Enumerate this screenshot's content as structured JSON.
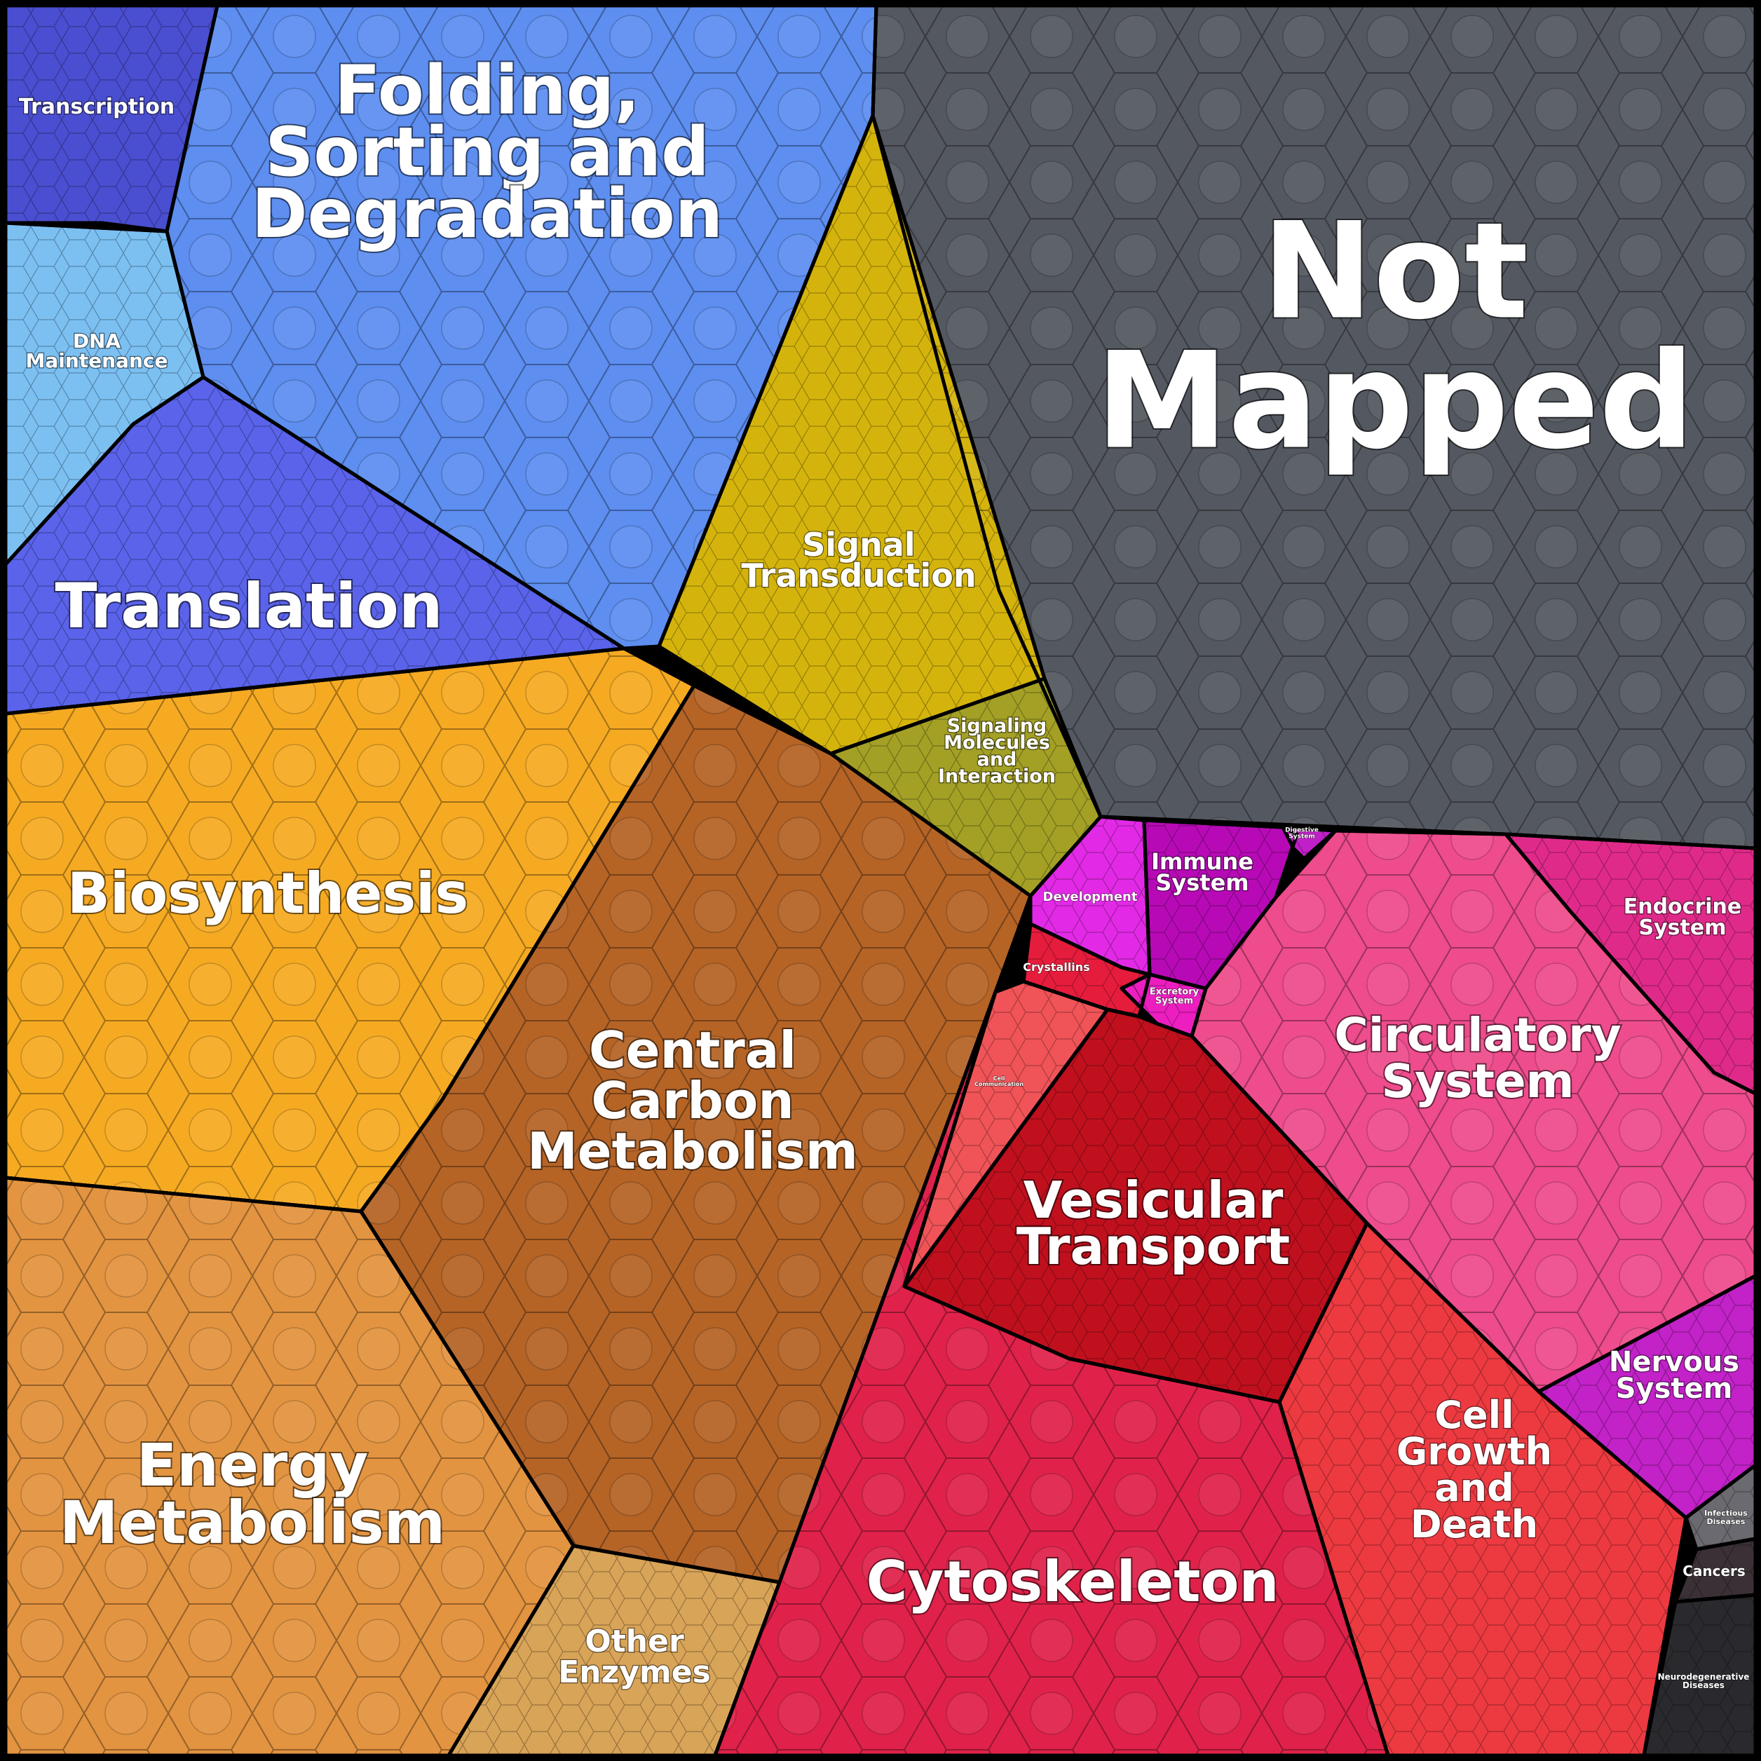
{
  "title": "",
  "regions": [
    {
      "id": "transcription",
      "label": [
        "Transcription"
      ],
      "color": "#4a4ed0"
    },
    {
      "id": "folding",
      "label": [
        "Folding,",
        "Sorting and",
        "Degradation"
      ],
      "color": "#5d8ef0"
    },
    {
      "id": "dna",
      "label": [
        "DNA",
        "Maintenance"
      ],
      "color": "#7cc0f2"
    },
    {
      "id": "translation",
      "label": [
        "Translation"
      ],
      "color": "#5a63ea"
    },
    {
      "id": "signal",
      "label": [
        "Signal",
        "Transduction"
      ],
      "color": "#d4b40c"
    },
    {
      "id": "signaling-molecules",
      "label": [
        "Signaling",
        "Molecules",
        "and",
        "Interaction"
      ],
      "color": "#a3a025"
    },
    {
      "id": "not-mapped",
      "label": [
        "Not",
        "Mapped"
      ],
      "color": "#545860"
    },
    {
      "id": "biosynthesis",
      "label": [
        "Biosynthesis"
      ],
      "color": "#f6aa22"
    },
    {
      "id": "central-carbon",
      "label": [
        "Central",
        "Carbon",
        "Metabolism"
      ],
      "color": "#b56426"
    },
    {
      "id": "energy",
      "label": [
        "Energy",
        "Metabolism"
      ],
      "color": "#e39440"
    },
    {
      "id": "other-enzymes",
      "label": [
        "Other",
        "Enzymes"
      ],
      "color": "#d8a458"
    },
    {
      "id": "development",
      "label": [
        "Development"
      ],
      "color": "#e22ae6"
    },
    {
      "id": "immune",
      "label": [
        "Immune",
        "System"
      ],
      "color": "#b70ab6"
    },
    {
      "id": "digestive",
      "label": [
        "Digestive",
        "System"
      ],
      "color": "#c020c8"
    },
    {
      "id": "endocrine",
      "label": [
        "Endocrine",
        "System"
      ],
      "color": "#e02a8a"
    },
    {
      "id": "circulatory",
      "label": [
        "Circulatory",
        "System"
      ],
      "color": "#ee4c8c"
    },
    {
      "id": "crystallins",
      "label": [
        "Crystallins"
      ],
      "color": "#e61c3c"
    },
    {
      "id": "excretory",
      "label": [
        "Excretory",
        "System"
      ],
      "color": "#ec1ec0"
    },
    {
      "id": "cell-communication",
      "label": [
        "Cell",
        "Communication"
      ],
      "color": "#f05458"
    },
    {
      "id": "vesicular",
      "label": [
        "Vesicular",
        "Transport"
      ],
      "color": "#c0101e"
    },
    {
      "id": "cytoskeleton",
      "label": [
        "Cytoskeleton"
      ],
      "color": "#e0224a"
    },
    {
      "id": "cell-growth",
      "label": [
        "Cell",
        "Growth",
        "and",
        "Death"
      ],
      "color": "#ec3a40"
    },
    {
      "id": "nervous",
      "label": [
        "Nervous",
        "System"
      ],
      "color": "#c222c8"
    },
    {
      "id": "infectious",
      "label": [
        "Infectious",
        "Diseases"
      ],
      "color": "#6a6a70"
    },
    {
      "id": "cancers",
      "label": [
        "Cancers"
      ],
      "color": "#3a3035"
    },
    {
      "id": "neurodegenerative",
      "label": [
        "Neurodegenerative",
        "Diseases"
      ],
      "color": "#2a2a2e"
    }
  ]
}
